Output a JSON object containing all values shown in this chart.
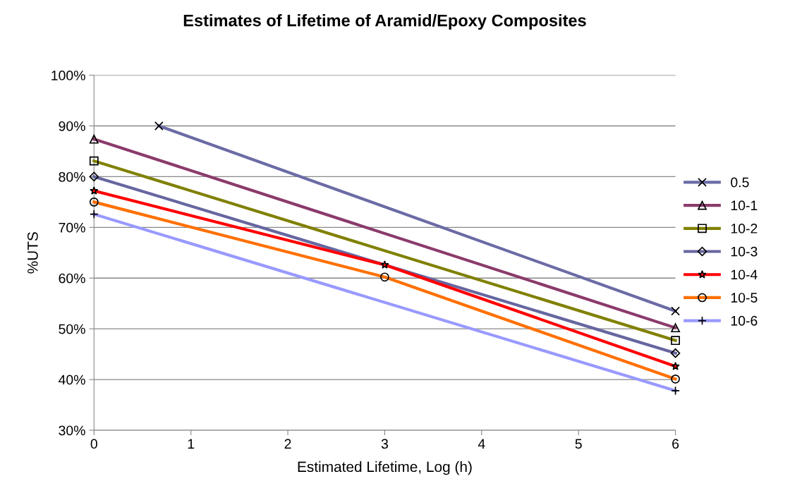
{
  "chart_data": {
    "type": "line",
    "title": "Estimates of Lifetime of Aramid/Epoxy Composites",
    "xlabel": "Estimated Lifetime, Log (h)",
    "ylabel": "%UTS",
    "series": [
      {
        "name": "0.5",
        "color": "#6b6ba6",
        "marker": "cross",
        "x": [
          0.67,
          6
        ],
        "values": [
          90.0,
          53.5
        ]
      },
      {
        "name": "10-1",
        "color": "#8b3a6b",
        "marker": "triangle",
        "x": [
          0,
          6
        ],
        "values": [
          87.4,
          50.2
        ]
      },
      {
        "name": "10-2",
        "color": "#808000",
        "marker": "square",
        "x": [
          0,
          6
        ],
        "values": [
          83.1,
          47.7
        ]
      },
      {
        "name": "10-3",
        "color": "#6666a0",
        "marker": "diamond",
        "x": [
          0,
          6
        ],
        "values": [
          80.0,
          45.2
        ]
      },
      {
        "name": "10-4",
        "color": "#ff0000",
        "marker": "star",
        "x": [
          0,
          3,
          6
        ],
        "values": [
          77.2,
          62.6,
          42.6
        ]
      },
      {
        "name": "10-5",
        "color": "#ff7000",
        "marker": "circle",
        "x": [
          0,
          3,
          6
        ],
        "values": [
          75.0,
          60.2,
          40.1
        ]
      },
      {
        "name": "10-6",
        "color": "#9999ff",
        "marker": "plus",
        "x": [
          0,
          6
        ],
        "values": [
          72.6,
          37.8
        ]
      }
    ],
    "xlim": [
      0,
      6
    ],
    "xticks": [
      0,
      1,
      2,
      3,
      4,
      5,
      6
    ],
    "ylim": [
      30,
      100
    ],
    "yticks": [
      {
        "value": 30,
        "label": "30%"
      },
      {
        "value": 40,
        "label": "40%"
      },
      {
        "value": 50,
        "label": "50%"
      },
      {
        "value": 60,
        "label": "60%"
      },
      {
        "value": 70,
        "label": "70%"
      },
      {
        "value": 80,
        "label": "80%"
      },
      {
        "value": 90,
        "label": "90%"
      },
      {
        "value": 100,
        "label": "100%"
      }
    ],
    "grid": "y",
    "legend": "right",
    "line_style": "solid"
  }
}
